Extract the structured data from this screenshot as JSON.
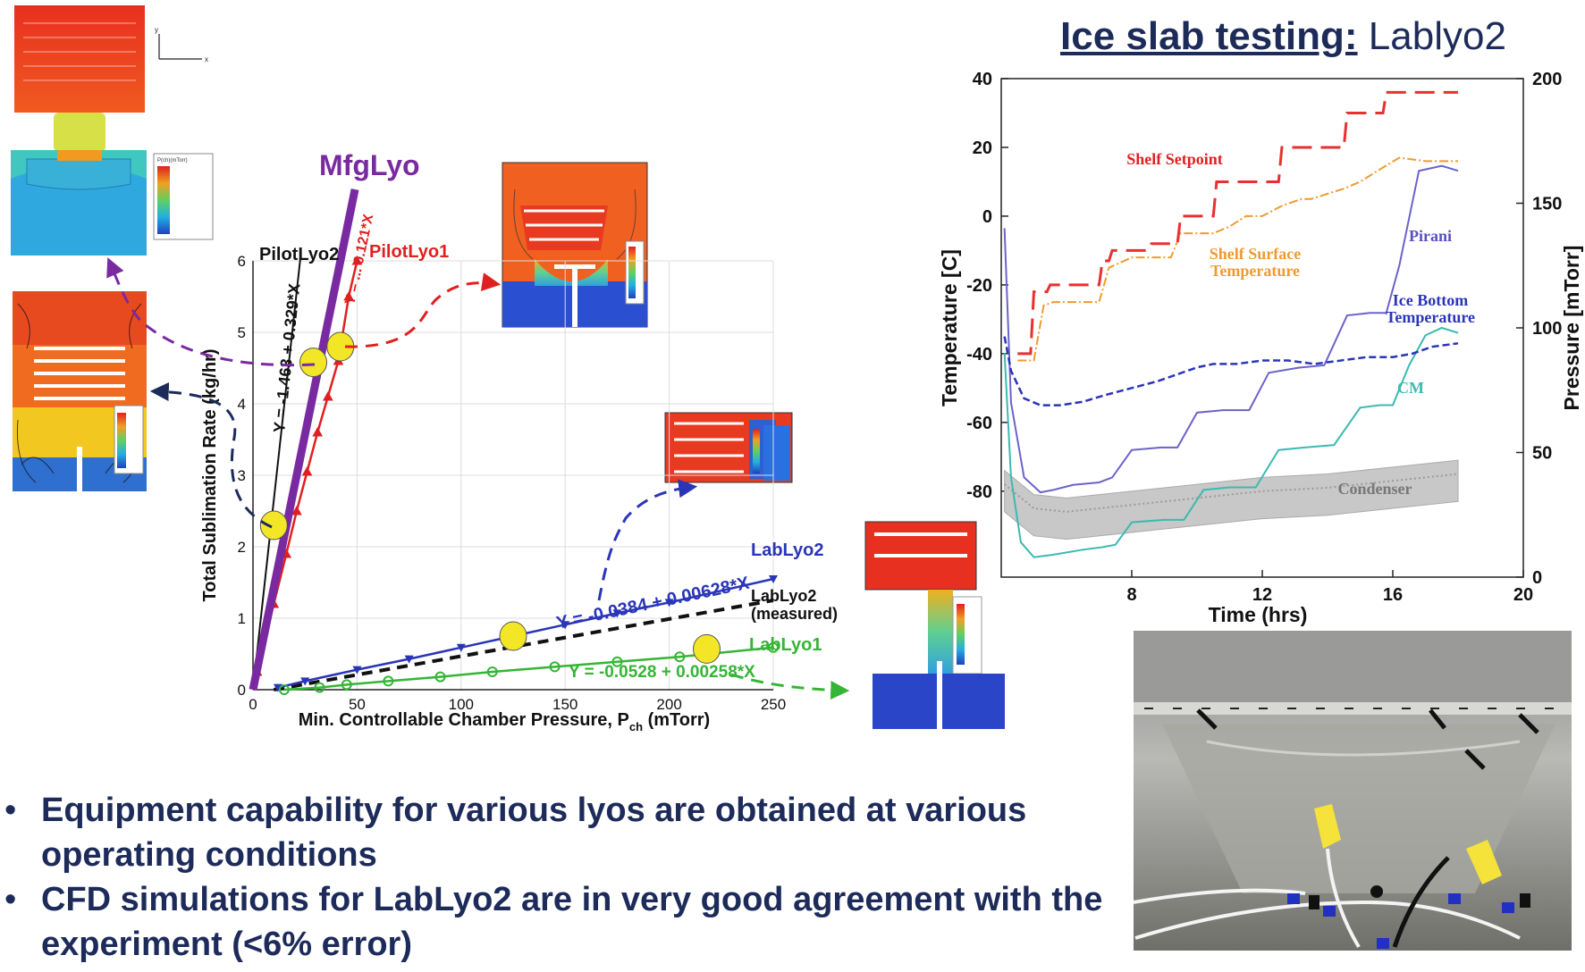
{
  "page_title": {
    "bold": "Ice slab testing:",
    "rest": "Lablyo2"
  },
  "bullets": [
    "Equipment capability for various lyos are obtained at various operating conditions",
    "CFD simulations for LabLyo2 are in very good agreement with the experiment (<6% error)"
  ],
  "cfd_labels": {
    "mfglyo": "MfgLyo",
    "axis_y": "y",
    "axis_x": "x",
    "legend_title": "P(ch)(mTorr)"
  },
  "colors": {
    "mfglyo": "#7a2aa0",
    "pilotlyo1": "#e02020",
    "pilotlyo2": "#111111",
    "lablyo2": "#2a35b8",
    "lablyo2_measured": "#111111",
    "lablyo1": "#35b535",
    "marker": "#f2e626",
    "text_navy": "#1d2b5a"
  },
  "chart_data": [
    {
      "type": "line",
      "xlabel": "Min. Controllable Chamber Pressure, P",
      "xlabel_sub": "ch",
      "xlabel_unit": "(mTorr)",
      "ylabel": "Total Sublimation Rate (kg/hr)",
      "xlim": [
        0,
        250
      ],
      "ylim": [
        0,
        6
      ],
      "xticks": [
        "0",
        "50",
        "100",
        "150",
        "200",
        "250"
      ],
      "yticks": [
        "0",
        "1",
        "2",
        "3",
        "4",
        "5",
        "6"
      ],
      "grid": true,
      "series": [
        {
          "name": "MfgLyo",
          "x": [
            0,
            49
          ],
          "y": [
            0,
            7
          ]
        },
        {
          "name": "PilotLyo1",
          "x": [
            2,
            10,
            16,
            21,
            26,
            31,
            36,
            41,
            46,
            50
          ],
          "y": [
            0.25,
            1.2,
            1.9,
            2.5,
            3.05,
            3.6,
            4.1,
            4.6,
            5.5,
            6.0
          ],
          "equation": "Y = ... 0.121*X"
        },
        {
          "name": "PilotLyo2",
          "x": [
            0,
            23
          ],
          "y": [
            0,
            6.1
          ],
          "equation": "Y = -1.463 + 0.329*X"
        },
        {
          "name": "LabLyo2",
          "x": [
            12,
            25,
            50,
            75,
            100,
            125,
            150,
            175,
            200,
            250
          ],
          "y": [
            0.03,
            0.12,
            0.28,
            0.43,
            0.59,
            0.75,
            0.91,
            1.07,
            1.22,
            1.55
          ],
          "equation": "Y = -0.0384 + 0.00628*X"
        },
        {
          "name": "LabLyo2 (measured)",
          "x": [
            10,
            250
          ],
          "y": [
            0.0,
            1.25
          ]
        },
        {
          "name": "LabLyo1",
          "x": [
            15,
            32,
            45,
            65,
            90,
            115,
            145,
            175,
            205,
            250
          ],
          "y": [
            0.0,
            0.03,
            0.07,
            0.12,
            0.18,
            0.25,
            0.32,
            0.39,
            0.46,
            0.59
          ],
          "equation": "Y = -0.0528 + 0.00258*X"
        }
      ],
      "highlight_points": [
        {
          "x": 10,
          "y": 2.3
        },
        {
          "x": 29,
          "y": 4.58
        },
        {
          "x": 42,
          "y": 4.8
        },
        {
          "x": 125,
          "y": 0.75
        },
        {
          "x": 218,
          "y": 0.57
        }
      ]
    },
    {
      "type": "line",
      "title": "",
      "xlabel": "Time (hrs)",
      "ylabel": "Temperature [C]",
      "ylabel_right": "Pressure [mTorr]",
      "xlim": [
        4,
        20
      ],
      "ylim": [
        -90,
        40
      ],
      "ylim_right": [
        0,
        200
      ],
      "xticks": [
        "8",
        "12",
        "16",
        "20"
      ],
      "yticks": [
        "40",
        "20",
        "0",
        "-20",
        "-40",
        "-60",
        "-80"
      ],
      "yticks_right": [
        "200",
        "150",
        "100",
        "50",
        "0"
      ],
      "series": [
        {
          "name": "Shelf Setpoint",
          "x": [
            4.5,
            4.9,
            5.0,
            5.4,
            5.5,
            7.0,
            7.1,
            7.3,
            7.4,
            8.5,
            8.6,
            9.4,
            9.5,
            10.5,
            10.6,
            11.4,
            11.5,
            12.5,
            12.6,
            13.4,
            13.5,
            14.5,
            14.6,
            15.4,
            15.5,
            15.7,
            15.8,
            18.0
          ],
          "y": [
            -40,
            -40,
            -22,
            -22,
            -20,
            -20,
            -13,
            -13,
            -10,
            -10,
            -8,
            -8,
            0,
            0,
            10,
            10,
            10,
            10,
            20,
            20,
            20,
            20,
            30,
            30,
            30,
            30,
            36,
            36
          ]
        },
        {
          "name": "Shelf Surface Temperature",
          "x": [
            4.5,
            5.0,
            5.3,
            5.6,
            6.0,
            7.0,
            7.3,
            8.0,
            8.6,
            9.2,
            9.5,
            10.5,
            11.0,
            11.5,
            12.0,
            12.6,
            13.2,
            13.5,
            14.5,
            15.0,
            15.5,
            16.2,
            17.0,
            18.0
          ],
          "y": [
            -42,
            -42,
            -26,
            -25,
            -25,
            -25,
            -15,
            -12,
            -12,
            -12,
            -5,
            -5,
            -3,
            0,
            0,
            3,
            5,
            5,
            8,
            10,
            13,
            17,
            16,
            16
          ]
        },
        {
          "name": "Pirani",
          "x": [
            4.1,
            4.3,
            4.7,
            5.2,
            5.6,
            6.2,
            7.0,
            7.4,
            8.0,
            8.9,
            9.4,
            10.0,
            10.8,
            11.6,
            12.2,
            13.1,
            13.9,
            14.6,
            15.3,
            15.8,
            16.2,
            16.8,
            17.5,
            18.0
          ],
          "y": [
            140,
            70,
            40,
            34,
            35,
            37,
            38,
            40,
            51,
            52,
            52,
            66,
            67,
            67,
            82,
            84,
            85,
            105,
            106,
            106,
            125,
            163,
            165,
            163
          ]
        },
        {
          "name": "Ice Bottom Temperature",
          "x": [
            4.1,
            4.3,
            4.7,
            5.2,
            5.8,
            6.5,
            7.2,
            8.0,
            8.8,
            9.4,
            10.0,
            10.5,
            11.2,
            12.0,
            12.8,
            13.6,
            14.4,
            15.2,
            16.0,
            16.6,
            17.2,
            18.0
          ],
          "y": [
            -35,
            -45,
            -53,
            -55,
            -55,
            -54,
            -52,
            -50,
            -48,
            -46,
            -44,
            -43,
            -43,
            -42,
            -42,
            -43,
            -42,
            -41,
            -41,
            -40,
            -38,
            -37
          ]
        },
        {
          "name": "CM",
          "x": [
            4.1,
            4.3,
            4.6,
            5.0,
            5.6,
            6.5,
            7.1,
            7.5,
            8.0,
            9.0,
            9.6,
            10.2,
            11.0,
            11.8,
            12.5,
            13.3,
            14.2,
            15.0,
            15.6,
            16.0,
            16.5,
            17.0,
            17.5,
            18.0
          ],
          "y": [
            90,
            40,
            14,
            8,
            9,
            11,
            12,
            13,
            22,
            23,
            23,
            35,
            36,
            36,
            51,
            52,
            53,
            68,
            69,
            69,
            85,
            97,
            100,
            98
          ]
        },
        {
          "name": "Condenser",
          "x": [
            4.1,
            5.0,
            6.0,
            8.0,
            10.0,
            12.0,
            14.0,
            16.0,
            18.0
          ],
          "y": [
            -78,
            -85,
            -86,
            -84,
            -82,
            -80,
            -79,
            -77,
            -75
          ]
        }
      ]
    }
  ]
}
